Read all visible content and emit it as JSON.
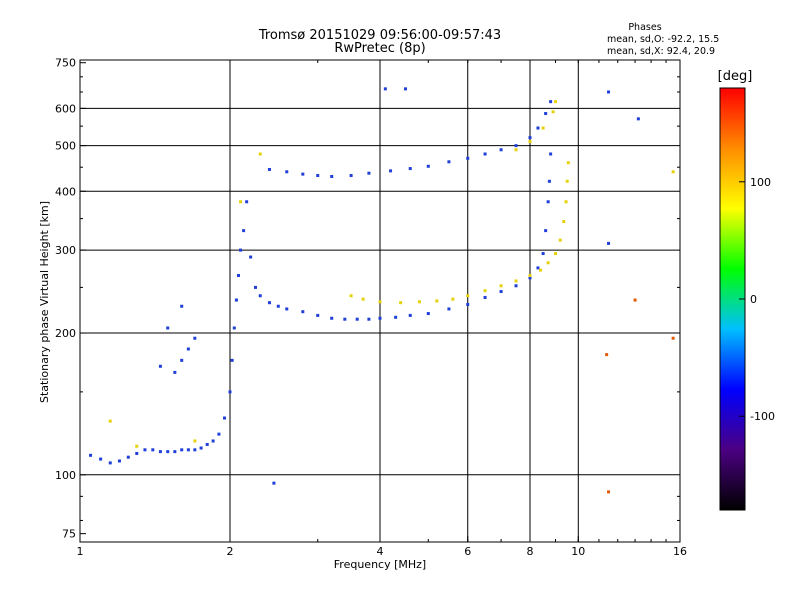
{
  "chart_data": {
    "type": "scatter",
    "title": "Tromsø 20151029 09:56:00-09:57:43",
    "subtitle": "RwPretec (8p)",
    "xlabel": "Frequency [MHz]",
    "ylabel": "Stationary phase Virtual Height [km]",
    "x_scale": "log",
    "y_scale": "log",
    "xlim": [
      1,
      16
    ],
    "ylim": [
      72,
      760
    ],
    "x_ticks": [
      1,
      2,
      4,
      6,
      8,
      10,
      16
    ],
    "x_tick_labels": [
      "1",
      "2",
      "4",
      "6",
      "8",
      "10",
      "16"
    ],
    "y_ticks": [
      75,
      100,
      200,
      300,
      400,
      500,
      600,
      750
    ],
    "y_tick_labels": [
      "75",
      "100",
      "200",
      "300",
      "400",
      "500",
      "600",
      "750"
    ],
    "grid_x": [
      2,
      4,
      6,
      8,
      10
    ],
    "grid_y": [
      100,
      200,
      300,
      400,
      500,
      600
    ],
    "grid": true,
    "stats": {
      "heading": "Phases",
      "line_o": "mean, sd,O: -92.2, 15.5",
      "line_x": "mean, sd,X:  92.4, 20.9"
    },
    "colorbar": {
      "label": "[deg]",
      "min": -180,
      "max": 180,
      "ticks": [
        100,
        0,
        -100
      ],
      "tick_labels": [
        "100",
        "0",
        "-100"
      ],
      "colors": [
        "#000000",
        "#4b0082",
        "#0000ff",
        "#00bfff",
        "#00ff00",
        "#ffff00",
        "#ff8c00",
        "#ff0000"
      ]
    },
    "series": [
      {
        "mode": "O",
        "phase_deg": -92,
        "color": "#1f3fd6",
        "points": [
          [
            1.05,
            110
          ],
          [
            1.1,
            108
          ],
          [
            1.15,
            106
          ],
          [
            1.2,
            107
          ],
          [
            1.25,
            109
          ],
          [
            1.3,
            111
          ],
          [
            1.35,
            113
          ],
          [
            1.4,
            113
          ],
          [
            1.45,
            112
          ],
          [
            1.5,
            112
          ],
          [
            1.55,
            112
          ],
          [
            1.6,
            113
          ],
          [
            1.65,
            113
          ],
          [
            1.7,
            113
          ],
          [
            1.75,
            114
          ],
          [
            1.8,
            116
          ],
          [
            1.85,
            118
          ],
          [
            1.9,
            122
          ],
          [
            1.95,
            132
          ],
          [
            2.0,
            150
          ],
          [
            2.02,
            175
          ],
          [
            2.04,
            205
          ],
          [
            2.06,
            235
          ],
          [
            2.08,
            265
          ],
          [
            2.1,
            300
          ],
          [
            2.13,
            330
          ],
          [
            2.16,
            380
          ],
          [
            2.2,
            290
          ],
          [
            2.25,
            250
          ],
          [
            2.3,
            240
          ],
          [
            2.4,
            232
          ],
          [
            2.5,
            228
          ],
          [
            2.6,
            225
          ],
          [
            2.8,
            222
          ],
          [
            3.0,
            218
          ],
          [
            3.2,
            215
          ],
          [
            3.4,
            214
          ],
          [
            3.6,
            214
          ],
          [
            3.8,
            214
          ],
          [
            4.0,
            215
          ],
          [
            4.3,
            216
          ],
          [
            4.6,
            218
          ],
          [
            5.0,
            220
          ],
          [
            5.5,
            225
          ],
          [
            6.0,
            230
          ],
          [
            6.5,
            238
          ],
          [
            7.0,
            245
          ],
          [
            7.5,
            252
          ],
          [
            8.0,
            262
          ],
          [
            8.3,
            275
          ],
          [
            8.5,
            295
          ],
          [
            8.6,
            330
          ],
          [
            8.7,
            380
          ],
          [
            8.75,
            420
          ],
          [
            8.8,
            480
          ],
          [
            2.4,
            445
          ],
          [
            2.6,
            440
          ],
          [
            2.8,
            435
          ],
          [
            3.0,
            432
          ],
          [
            3.2,
            430
          ],
          [
            3.5,
            432
          ],
          [
            3.8,
            437
          ],
          [
            4.2,
            442
          ],
          [
            4.6,
            447
          ],
          [
            5.0,
            452
          ],
          [
            5.5,
            462
          ],
          [
            6.0,
            470
          ],
          [
            6.5,
            480
          ],
          [
            7.0,
            490
          ],
          [
            7.5,
            500
          ],
          [
            8.0,
            520
          ],
          [
            8.3,
            545
          ],
          [
            8.6,
            585
          ],
          [
            8.8,
            620
          ],
          [
            1.6,
            175
          ],
          [
            1.65,
            185
          ],
          [
            1.7,
            195
          ],
          [
            1.55,
            165
          ],
          [
            1.6,
            228
          ],
          [
            1.5,
            205
          ],
          [
            1.45,
            170
          ]
        ]
      },
      {
        "mode": "X",
        "phase_deg": 92,
        "color": "#e6d20a",
        "points": [
          [
            3.5,
            240
          ],
          [
            3.7,
            236
          ],
          [
            4.0,
            233
          ],
          [
            4.4,
            232
          ],
          [
            4.8,
            233
          ],
          [
            5.2,
            234
          ],
          [
            5.6,
            236
          ],
          [
            6.0,
            240
          ],
          [
            6.5,
            246
          ],
          [
            7.0,
            252
          ],
          [
            7.5,
            258
          ],
          [
            8.0,
            265
          ],
          [
            8.4,
            272
          ],
          [
            8.7,
            282
          ],
          [
            9.0,
            295
          ],
          [
            9.2,
            315
          ],
          [
            9.35,
            345
          ],
          [
            9.45,
            380
          ],
          [
            9.5,
            420
          ],
          [
            9.55,
            460
          ],
          [
            7.5,
            490
          ],
          [
            8.0,
            510
          ],
          [
            8.5,
            545
          ],
          [
            8.9,
            590
          ],
          [
            9.0,
            620
          ],
          [
            1.15,
            130
          ],
          [
            1.3,
            115
          ],
          [
            1.7,
            118
          ],
          [
            2.3,
            480
          ],
          [
            2.1,
            380
          ]
        ]
      }
    ],
    "outliers": [
      {
        "x": 4.1,
        "y": 660,
        "color": "#1f3fd6"
      },
      {
        "x": 4.5,
        "y": 660,
        "color": "#1f3fd6"
      },
      {
        "x": 11.5,
        "y": 650,
        "color": "#1f3fd6"
      },
      {
        "x": 13.2,
        "y": 570,
        "color": "#1f3fd6"
      },
      {
        "x": 15.5,
        "y": 440,
        "color": "#e6d20a"
      },
      {
        "x": 11.5,
        "y": 310,
        "color": "#1f3fd6"
      },
      {
        "x": 11.4,
        "y": 180,
        "color": "#e05a00"
      },
      {
        "x": 13.0,
        "y": 235,
        "color": "#e05a00"
      },
      {
        "x": 15.5,
        "y": 195,
        "color": "#e05a00"
      },
      {
        "x": 11.5,
        "y": 92,
        "color": "#e05a00"
      },
      {
        "x": 2.45,
        "y": 96,
        "color": "#1f3fd6"
      }
    ]
  }
}
